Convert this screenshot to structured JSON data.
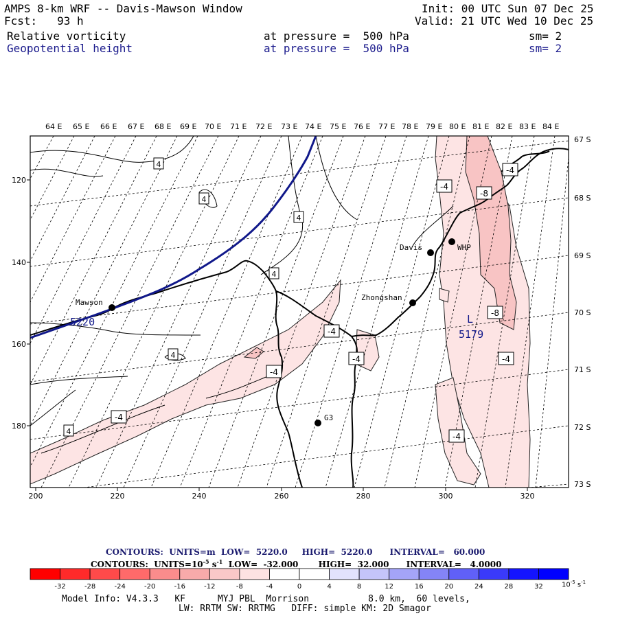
{
  "header": {
    "title": "AMPS 8-km WRF -- Davis-Mawson Window",
    "init": "Init: 00 UTC Sun 07 Dec 25",
    "fcst": "Fcst:   93 h",
    "valid": "Valid: 21 UTC Wed 10 Dec 25",
    "field1": "Relative vorticity",
    "field1_level": "at pressure =  500 hPa",
    "field1_sm": "sm= 2",
    "field2": "Geopotential height",
    "field2_level": "at pressure =  500 hPa",
    "field2_sm": "sm= 2"
  },
  "map": {
    "lon_labels": [
      "64 E",
      "65 E",
      "66 E",
      "67 E",
      "68 E",
      "69 E",
      "70 E",
      "71 E",
      "72 E",
      "73 E",
      "74 E",
      "75 E",
      "76 E",
      "77 E",
      "78 E",
      "79 E",
      "80 E",
      "81 E",
      "82 E",
      "83 E",
      "84 E"
    ],
    "lat_labels": [
      "67 S",
      "68 S",
      "69 S",
      "70 S",
      "71 S",
      "72 S",
      "73 S"
    ],
    "x_ticks": [
      "200",
      "220",
      "240",
      "260",
      "280",
      "300",
      "320"
    ],
    "y_ticks": [
      "120",
      "140",
      "160",
      "180"
    ],
    "stations": [
      {
        "name": "Mawson"
      },
      {
        "name": "Davis"
      },
      {
        "name": "WHP"
      },
      {
        "name": "Zhongshan"
      },
      {
        "name": "G3"
      }
    ],
    "contour_labels": [
      "4",
      "4",
      "4",
      "4",
      "4",
      "4",
      "-4",
      "-8",
      "-4",
      "-8",
      "-4",
      "-4",
      "-4",
      "-4",
      "-4",
      "-4"
    ],
    "height_labels": [
      {
        "text": "5220"
      },
      {
        "text": "L"
      },
      {
        "text": "5179"
      }
    ],
    "colors": {
      "geopotential": "#10188a",
      "vort_neg_light": "#fde4e4",
      "vort_neg_mid": "#f8c4c4",
      "vort_neg_strong": "#f4a8a8"
    }
  },
  "footer": {
    "contours_height": "CONTOURS:  UNITS=m  LOW=  5220.0     HIGH=  5220.0      INTERVAL=   60.000",
    "contours_vort": "CONTOURS:  UNITS=10",
    "contours_vort_exp": "-5",
    "contours_vort_rest": " s",
    "contours_vort_exp2": "-1",
    "contours_vort_tail": "  LOW=  -32.000       HIGH=  32.000      INTERVAL=   4.0000",
    "colorbar_labels": [
      "-32",
      "-28",
      "-24",
      "-20",
      "-16",
      "-12",
      "-8",
      "-4",
      "0",
      "4",
      "8",
      "12",
      "16",
      "20",
      "24",
      "28",
      "32"
    ],
    "colorbar_unit": "10",
    "colorbar_unit_exp": "-5",
    "colorbar_unit_s": "s",
    "colorbar_unit_exp2": "-1",
    "colorbar_colors": [
      "#ff0000",
      "#ff2a2a",
      "#ff4a4a",
      "#ff6a6a",
      "#fa8c8c",
      "#f8aaaa",
      "#fac8c8",
      "#fde2e2",
      "#ffffff",
      "#ffffff",
      "#e2e2fd",
      "#c4c4fa",
      "#a4a4f8",
      "#8484f6",
      "#6060f8",
      "#3a3afa",
      "#1414ff",
      "#0000ff"
    ],
    "model_info": "Model Info: V4.3.3   KF      MYJ PBL  Morrison           8.0 km,  60 levels,",
    "model_info2": "LW: RRTM SW: RRTMG   DIFF: simple KM: 2D Smagor"
  }
}
